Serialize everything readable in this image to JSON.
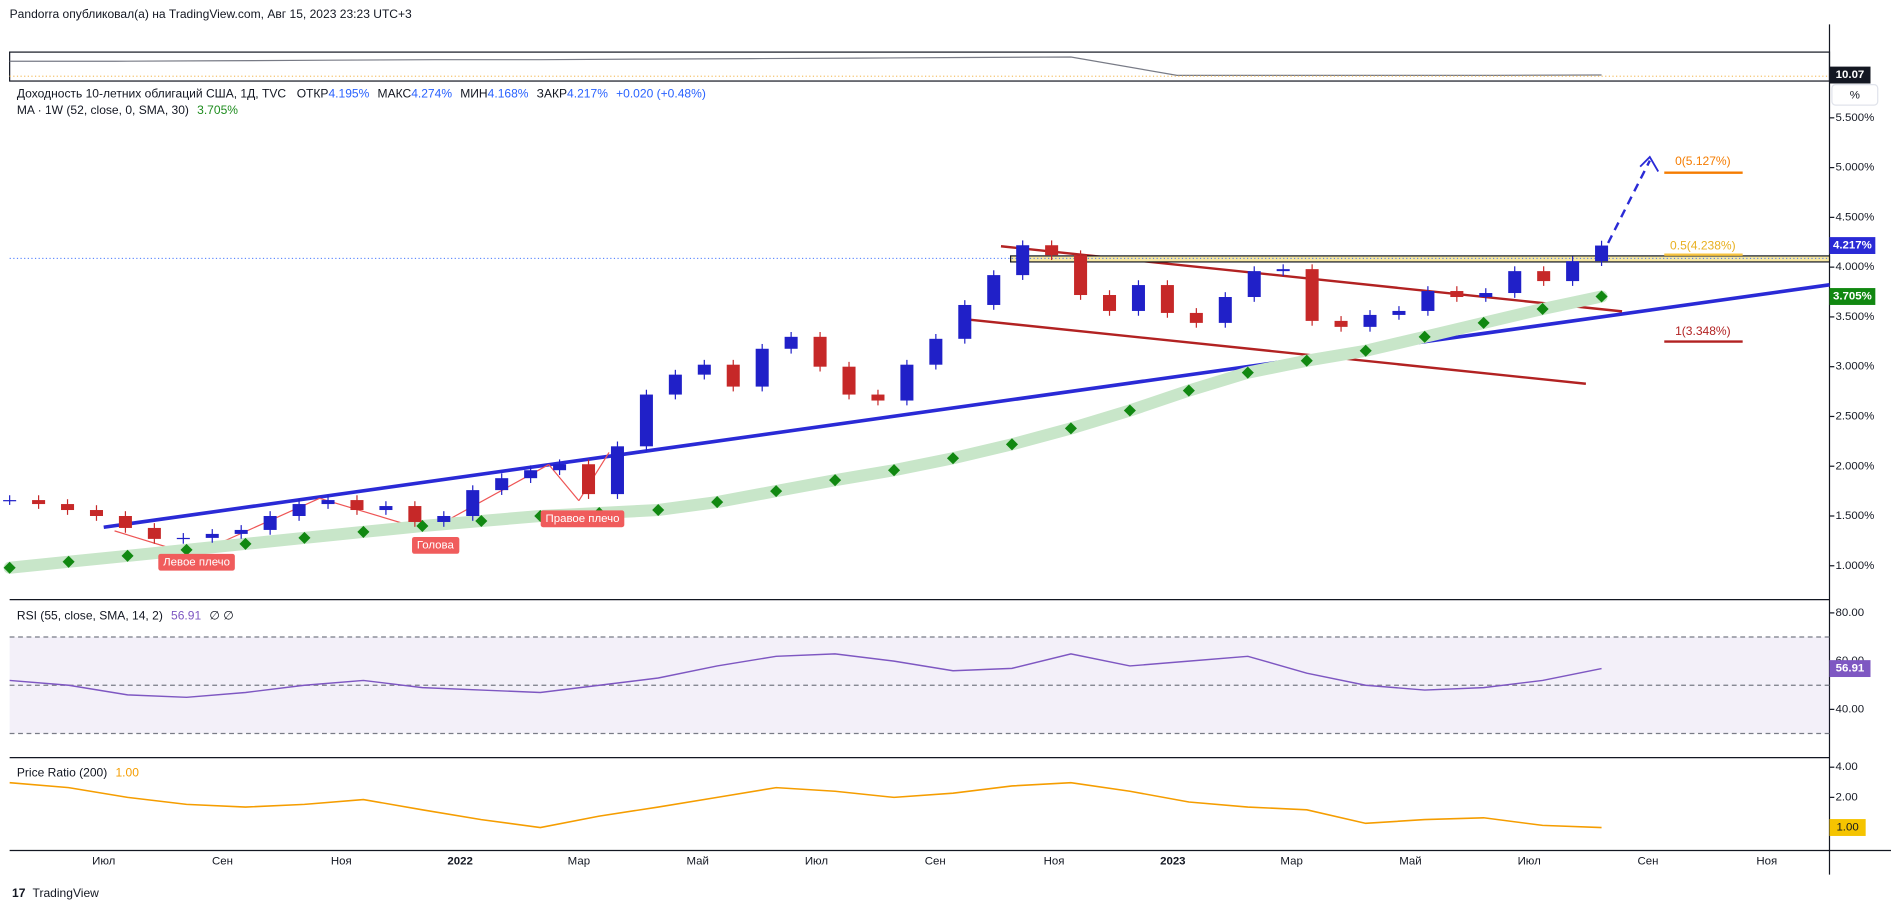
{
  "header": {
    "text": "Pandorra опубликовал(а) на TradingView.com, Авг 15, 2023 23:23 UTC+3"
  },
  "mini": {
    "values": [
      10.6,
      10.6,
      10.62,
      10.64,
      10.66,
      10.66,
      10.68,
      10.7,
      10.72,
      10.74,
      10.76,
      10.07,
      10.07,
      10.07,
      10.07,
      10.08
    ],
    "ylim": [
      9.9,
      10.9
    ],
    "last_label": "10.07"
  },
  "main": {
    "title": "Доходность 10-летних облигаций США, 1Д, TVC",
    "ohlc": [
      {
        "label": "ОТКР",
        "value": "4.195%"
      },
      {
        "label": "МАКС",
        "value": "4.274%"
      },
      {
        "label": "МИН",
        "value": "4.168%"
      },
      {
        "label": "ЗАКР",
        "value": "4.217%"
      }
    ],
    "change": "+0.020 (+0.48%)",
    "ma_legend": "MA · 1W (52, close, 0, SMA, 30)",
    "ma_value": "3.705%",
    "scale_button": "%",
    "ylim": [
      0.66,
      5.7
    ],
    "yticks": [
      {
        "value": 5.5,
        "label": "5.500%"
      },
      {
        "value": 5.0,
        "label": "5.000%"
      },
      {
        "value": 4.5,
        "label": "4.500%"
      },
      {
        "value": 4.0,
        "label": "4.000%"
      },
      {
        "value": 3.5,
        "label": "3.500%"
      },
      {
        "value": 3.0,
        "label": "3.000%"
      },
      {
        "value": 2.5,
        "label": "2.500%"
      },
      {
        "value": 2.0,
        "label": "2.000%"
      },
      {
        "value": 1.5,
        "label": "1.500%"
      },
      {
        "value": 1.0,
        "label": "1.000%"
      }
    ],
    "price": [
      1.66,
      1.62,
      1.56,
      1.5,
      1.38,
      1.27,
      1.28,
      1.32,
      1.36,
      1.5,
      1.62,
      1.66,
      1.56,
      1.6,
      1.44,
      1.5,
      1.76,
      1.88,
      1.96,
      2.02,
      1.72,
      2.2,
      2.72,
      2.92,
      3.02,
      2.8,
      3.18,
      3.3,
      3.0,
      2.72,
      2.66,
      3.02,
      3.28,
      3.62,
      3.92,
      4.22,
      4.12,
      3.72,
      3.56,
      3.82,
      3.54,
      3.44,
      3.7,
      3.96,
      3.98,
      3.46,
      3.4,
      3.52,
      3.56,
      3.76,
      3.7,
      3.74,
      3.96,
      3.86,
      4.06,
      4.217
    ],
    "ma": [
      0.98,
      1.04,
      1.1,
      1.16,
      1.22,
      1.28,
      1.34,
      1.4,
      1.45,
      1.5,
      1.53,
      1.56,
      1.64,
      1.75,
      1.86,
      1.96,
      2.08,
      2.22,
      2.38,
      2.56,
      2.76,
      2.94,
      3.06,
      3.16,
      3.3,
      3.44,
      3.58,
      3.705
    ],
    "last_price_label": "4.217%",
    "last_ma_label": "3.705%",
    "annotations": [
      "Левое плечо",
      "Голова",
      "Правое плечо"
    ],
    "fib": [
      "0(5.127%)",
      "0.5(4.238%)",
      "1(3.348%)"
    ]
  },
  "rsi": {
    "legend": "RSI (55, close, SMA, 14, 2)",
    "value": "56.91",
    "extra": "∅ ∅",
    "ylim": [
      20,
      84.5
    ],
    "yticks": [
      {
        "value": 80,
        "label": "80.00"
      },
      {
        "value": 60,
        "label": "60.00"
      },
      {
        "value": 40,
        "label": "40.00"
      }
    ],
    "levels": [
      70,
      50,
      30
    ],
    "values": [
      52,
      50,
      46,
      45,
      47,
      50,
      52,
      49,
      48,
      47,
      50,
      53,
      58,
      62,
      63,
      60,
      56,
      57,
      63,
      58,
      60,
      62,
      55,
      50,
      48,
      49,
      52,
      56.91
    ],
    "last_label": "56.91"
  },
  "ratio": {
    "legend": "Price Ratio (200)",
    "value": "1.00",
    "log": true,
    "ylim": [
      0.59,
      4.72
    ],
    "yticks": [
      {
        "value": 4,
        "label": "4.00"
      },
      {
        "value": 2,
        "label": "2.00"
      }
    ],
    "values": [
      2.8,
      2.5,
      2.0,
      1.7,
      1.6,
      1.7,
      1.9,
      1.5,
      1.2,
      1.0,
      1.3,
      1.6,
      2.0,
      2.5,
      2.3,
      2.0,
      2.2,
      2.6,
      2.8,
      2.3,
      1.8,
      1.6,
      1.5,
      1.1,
      1.2,
      1.25,
      1.05,
      1.0
    ],
    "last_label": "1.00"
  },
  "x_labels": [
    "Июл",
    "Сен",
    "Ноя",
    "2022",
    "Мар",
    "Май",
    "Июл",
    "Сен",
    "Ноя",
    "2023",
    "Мар",
    "Май",
    "Июл",
    "Сен",
    "Ноя"
  ],
  "footer": "TradingView"
}
